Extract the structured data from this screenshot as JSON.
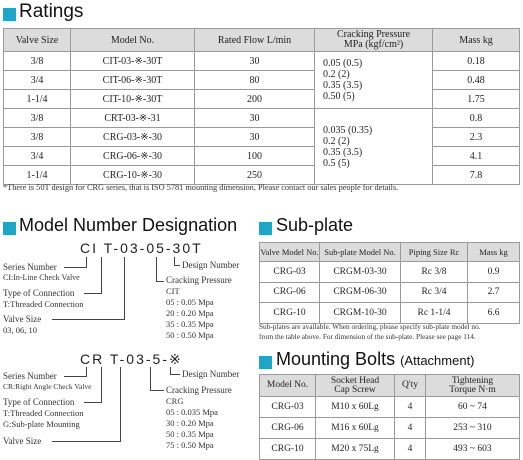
{
  "ratings": {
    "title": "Ratings",
    "headers": [
      "Valve Size",
      "Model No.",
      "Rated Flow L/min",
      "Cracking Pressure",
      "MPa (kgf/cm²)",
      "Mass kg"
    ],
    "rows": [
      {
        "size": "3/8",
        "model": "CIT-03-※-30T",
        "flow": "30",
        "mass": "0.18"
      },
      {
        "size": "3/4",
        "model": "CIT-06-※-30T",
        "flow": "80",
        "mass": "0.48"
      },
      {
        "size": "1-1/4",
        "model": "CIT-10-※-30T",
        "flow": "200",
        "mass": "1.75"
      },
      {
        "size": "3/8",
        "model": "CRT-03-※-31",
        "flow": "30",
        "mass": "0.8"
      },
      {
        "size": "3/8",
        "model": "CRG-03-※-30",
        "flow": "30",
        "mass": "2.3"
      },
      {
        "size": "3/4",
        "model": "CRG-06-※-30",
        "flow": "100",
        "mass": "4.1"
      },
      {
        "size": "1-1/4",
        "model": "CRG-10-※-30",
        "flow": "250",
        "mass": "7.8"
      }
    ],
    "cp_group1": [
      "0.05 (0.5)",
      "0.2  (2)",
      "0.35 (3.5)",
      "0.50 (5)"
    ],
    "cp_group2": [
      "0.035 (0.35)",
      "0.2 (2)",
      "0.35 (3.5)",
      "0.5 (5)"
    ],
    "footnote": "*There is 50T design for CRG series, that is ISO 5781 mounting dimension, Please contact our sales people for details."
  },
  "designation": {
    "title": "Model Number Designation",
    "ci": {
      "code": "CI T-03-05-30T",
      "series_label": "Series Number",
      "series_desc": "CI:In-Line Check Valve",
      "connection_label": "Type of Connection",
      "connection_desc": "T:Threaded Connection",
      "size_label": "Valve Size",
      "size_desc": "03, 06, 10",
      "design_label": "Design Number",
      "cracking_label": "Cracking Pressure",
      "cracking_model": "CIT",
      "cracking_values": [
        "05 : 0.05 Mpa",
        "20 : 0.20 Mpa",
        "35 : 0.35 Mpa",
        "50 : 0.50 Mpa"
      ]
    },
    "cr": {
      "code": "CR T-03-5-※",
      "series_label": "Series Number",
      "series_desc": "CR:Right Angle Check Valve",
      "connection_label": "Type of Connection",
      "connection_desc1": "T:Threaded Connection",
      "connection_desc2": "G:Sub-plate Mounting",
      "size_label": "Valve Size",
      "design_label": "Design Number",
      "cracking_label": "Cracking Pressure",
      "cracking_model": "CRG",
      "cracking_values": [
        "05 : 0.035 Mpa",
        "30 : 0.20 Mpa",
        "50 : 0.35 Mpa",
        "75 : 0.50 Mpa"
      ]
    }
  },
  "subplate": {
    "title": "Sub-plate",
    "headers": [
      "Valve Model No.",
      "Sub-plate Model No.",
      "Piping Size Rc",
      "Mass kg"
    ],
    "rows": [
      {
        "valve": "CRG-03",
        "plate": "CRGM-03-30",
        "pipe": "Rc 3/8",
        "mass": "0.9"
      },
      {
        "valve": "CRG-06",
        "plate": "CRGM-06-30",
        "pipe": "Rc 3/4",
        "mass": "2.7"
      },
      {
        "valve": "CRG-10",
        "plate": "CRGM-10-30",
        "pipe": "Rc 1-1/4",
        "mass": "6.6"
      }
    ],
    "note1": "Sub-plates are available. When ordering, please specify sub-plate model no.",
    "note2": "from the table above. For dimension of the sub-plate. Please see page 114."
  },
  "bolts": {
    "title": "Mounting Bolts",
    "title_sub": "(Attachment)",
    "headers": [
      "Model No.",
      "Socket Head",
      "Cap Screw",
      "Q'ty",
      "Tightening",
      "Torque N·m"
    ],
    "rows": [
      {
        "model": "CRG-03",
        "screw": "M10 x 60Lg",
        "qty": "4",
        "torque": "60 ~ 74"
      },
      {
        "model": "CRG-06",
        "screw": "M16 x 60Lg",
        "qty": "4",
        "torque": "253 ~ 310"
      },
      {
        "model": "CRG-10",
        "screw": "M20 x 75Lg",
        "qty": "4",
        "torque": "493 ~ 603"
      }
    ]
  }
}
